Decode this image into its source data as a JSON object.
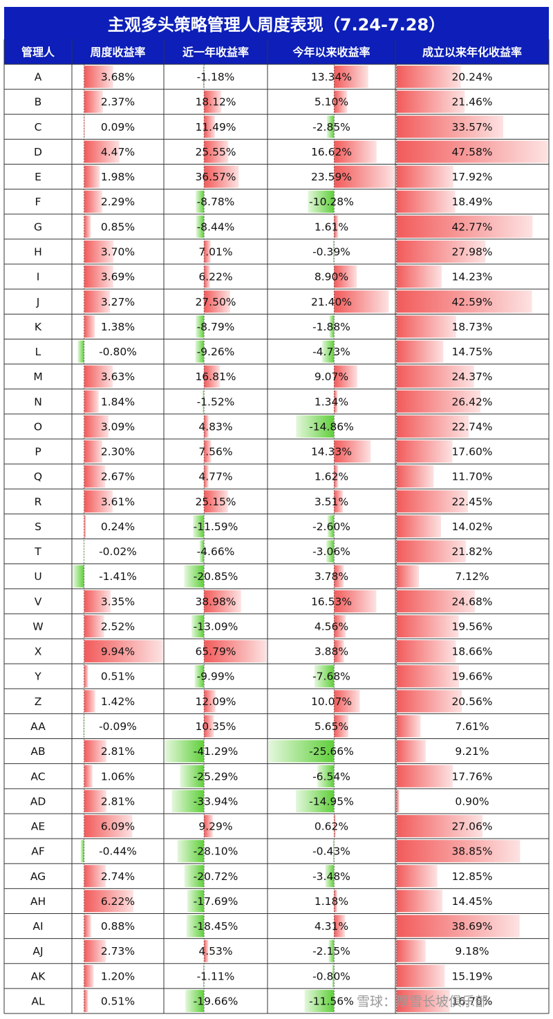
{
  "title": "主观多头策略管理人周度表现（7.24-7.28）",
  "watermark": "雪球：厚雪长坡俱乐部",
  "colors": {
    "header_bg": "#0d1fb8",
    "positive": "#f25a5a",
    "negative": "#5fcf3a",
    "grid": "#333333"
  },
  "chart_data": {
    "type": "table",
    "columns": [
      "管理人",
      "周度收益率",
      "近一年收益率",
      "今年以来收益率",
      "成立以来年化收益率"
    ],
    "rows": [
      [
        "A",
        3.68,
        -1.18,
        13.34,
        20.24
      ],
      [
        "B",
        2.37,
        18.12,
        5.1,
        21.46
      ],
      [
        "C",
        0.09,
        11.49,
        -2.85,
        33.57
      ],
      [
        "D",
        4.47,
        25.55,
        16.62,
        47.58
      ],
      [
        "E",
        1.98,
        36.57,
        23.59,
        17.92
      ],
      [
        "F",
        2.29,
        -8.78,
        -10.28,
        18.49
      ],
      [
        "G",
        0.85,
        -8.44,
        1.61,
        42.77
      ],
      [
        "H",
        3.7,
        7.01,
        -0.39,
        27.98
      ],
      [
        "I",
        3.69,
        6.22,
        8.9,
        14.23
      ],
      [
        "J",
        3.27,
        27.5,
        21.4,
        42.59
      ],
      [
        "K",
        1.38,
        -8.79,
        -1.88,
        18.73
      ],
      [
        "L",
        -0.8,
        -9.26,
        -4.73,
        14.75
      ],
      [
        "M",
        3.63,
        16.81,
        9.07,
        24.37
      ],
      [
        "N",
        1.84,
        -1.52,
        1.34,
        26.42
      ],
      [
        "O",
        3.09,
        4.83,
        -14.86,
        22.74
      ],
      [
        "P",
        2.3,
        7.56,
        14.33,
        17.6
      ],
      [
        "Q",
        2.67,
        4.77,
        1.62,
        11.7
      ],
      [
        "R",
        3.61,
        25.15,
        3.51,
        22.45
      ],
      [
        "S",
        0.24,
        -11.59,
        -2.6,
        14.02
      ],
      [
        "T",
        -0.02,
        -4.66,
        -3.06,
        21.82
      ],
      [
        "U",
        -1.41,
        -20.85,
        3.78,
        7.12
      ],
      [
        "V",
        3.35,
        38.98,
        16.53,
        24.68
      ],
      [
        "W",
        2.52,
        -13.09,
        4.56,
        19.56
      ],
      [
        "X",
        9.94,
        65.79,
        3.88,
        18.66
      ],
      [
        "Y",
        0.51,
        -9.99,
        -7.68,
        19.66
      ],
      [
        "Z",
        1.42,
        12.09,
        10.07,
        20.56
      ],
      [
        "AA",
        -0.09,
        10.35,
        5.65,
        7.61
      ],
      [
        "AB",
        2.81,
        -41.29,
        -25.66,
        9.21
      ],
      [
        "AC",
        1.06,
        -25.29,
        -6.54,
        17.76
      ],
      [
        "AD",
        2.81,
        -33.94,
        -14.95,
        0.9
      ],
      [
        "AE",
        6.09,
        9.29,
        0.62,
        27.06
      ],
      [
        "AF",
        -0.44,
        -28.1,
        -0.43,
        38.85
      ],
      [
        "AG",
        2.74,
        -20.72,
        -3.48,
        12.85
      ],
      [
        "AH",
        6.22,
        -17.69,
        1.18,
        14.45
      ],
      [
        "AI",
        0.88,
        -18.45,
        4.31,
        38.69
      ],
      [
        "AJ",
        2.73,
        4.53,
        -2.15,
        9.18
      ],
      [
        "AK",
        1.2,
        -1.11,
        -0.8,
        15.19
      ],
      [
        "AL",
        0.51,
        -19.66,
        -11.56,
        16.78
      ]
    ]
  }
}
